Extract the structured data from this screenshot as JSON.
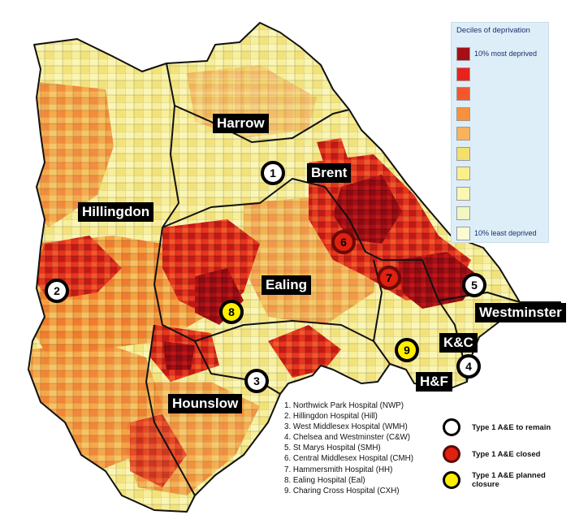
{
  "legend": {
    "title": "Deciles of deprivation",
    "deciles": [
      {
        "label": "10% most deprived",
        "color": "#a50f15"
      },
      {
        "label": "",
        "color": "#e8231c"
      },
      {
        "label": "",
        "color": "#f4572c"
      },
      {
        "label": "",
        "color": "#f7913a"
      },
      {
        "label": "",
        "color": "#f9b35c"
      },
      {
        "label": "",
        "color": "#f4df6c"
      },
      {
        "label": "",
        "color": "#f9f08a"
      },
      {
        "label": "",
        "color": "#fbf6b0"
      },
      {
        "label": "",
        "color": "#f1f7c2"
      },
      {
        "label": "10% least deprived",
        "color": "#fbfbd3"
      }
    ]
  },
  "boroughs": {
    "harrow": "Harrow",
    "brent": "Brent",
    "hillingdon": "Hillingdon",
    "ealing": "Ealing",
    "westminster": "Westminster",
    "kc": "K&C",
    "hf": "H&F",
    "hounslow": "Hounslow"
  },
  "markers": [
    {
      "num": "1",
      "status": "remain"
    },
    {
      "num": "2",
      "status": "remain"
    },
    {
      "num": "3",
      "status": "remain"
    },
    {
      "num": "4",
      "status": "remain"
    },
    {
      "num": "5",
      "status": "remain"
    },
    {
      "num": "6",
      "status": "closed"
    },
    {
      "num": "7",
      "status": "closed"
    },
    {
      "num": "8",
      "status": "planned"
    },
    {
      "num": "9",
      "status": "planned"
    }
  ],
  "hospitals": [
    "1. Northwick Park Hospital (NWP)",
    "2. Hillingdon Hospital (Hill)",
    "3. West Middlesex Hospital (WMH)",
    "4. Chelsea and Westminster (C&W)",
    "5. St Marys Hospital (SMH)",
    "6. Central Middlesex Hospital (CMH)",
    "7. Hammersmith Hospital (HH)",
    "8. Ealing Hospital (Eal)",
    "9. Charing Cross Hospital (CXH)"
  ],
  "key": {
    "remain": "Type 1 A&E to remain",
    "closed": "Type 1 A&E closed",
    "planned": "Type 1 A&E planned closure"
  },
  "colors": {
    "remain": "#ffffff",
    "closed": "#e02010",
    "planned": "#ffee00",
    "boundary": "#111111"
  }
}
